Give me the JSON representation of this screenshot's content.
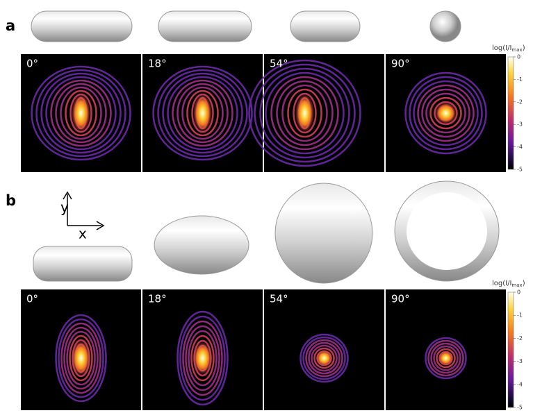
{
  "panels": [
    {
      "label": "a",
      "images": [
        {
          "angle": "0°"
        },
        {
          "angle": "18°"
        },
        {
          "angle": "54°"
        },
        {
          "angle": "90°"
        }
      ],
      "colorbar": {
        "label": {
          "text": "log(I/I",
          "sub": "max",
          "close": ")"
        },
        "ticks": [
          0,
          -1,
          -2,
          -3,
          -4,
          -5
        ]
      }
    },
    {
      "label": "b",
      "images": [
        {
          "angle": "0°"
        },
        {
          "angle": "18°"
        },
        {
          "angle": "54°"
        },
        {
          "angle": "90°"
        }
      ],
      "colorbar": {
        "label": {
          "text": "log(I/I",
          "sub": "max",
          "close": ")"
        },
        "ticks": [
          0,
          -1,
          -2,
          -3,
          -4,
          -5
        ]
      }
    }
  ],
  "axes": {
    "y": "y",
    "x": "x"
  }
}
